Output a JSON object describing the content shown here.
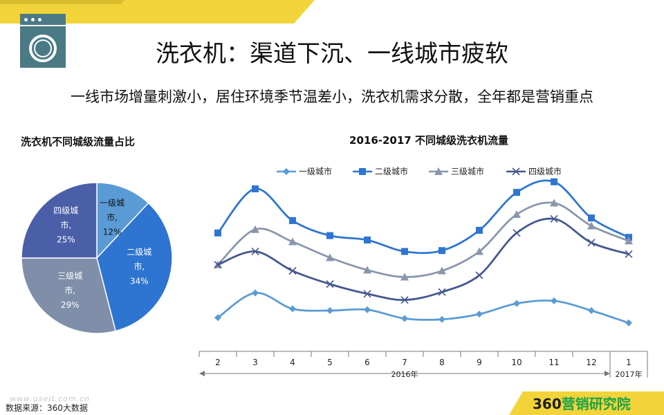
{
  "page": {
    "title": "洗衣机：渠道下沉、一线城市疲软",
    "subtitle": "一线市场增量刺激小，居住环境季节温差小，洗衣机需求分散，全年都是营销重点",
    "source": "数据来源：360大数据",
    "watermark": "www.useit.com.cn",
    "brand_number": "360",
    "brand_text": "营销研究院",
    "icon": "washing-machine-icon",
    "colors": {
      "accent_yellow": "#f2d43a",
      "icon_teal": "#4a7a86",
      "brand_green": "#1aa34a"
    }
  },
  "chart_data": [
    {
      "type": "pie",
      "title": "洗衣机不同城级流量占比",
      "slices": [
        {
          "label_line1": "一级城",
          "label_line2": "市,",
          "label_line3": "12%",
          "value": 12,
          "color": "#5b9bd5"
        },
        {
          "label_line1": "二级城",
          "label_line2": "市,",
          "label_line3": "34%",
          "value": 34,
          "color": "#2e75d1"
        },
        {
          "label_line1": "三级城",
          "label_line2": "市,",
          "label_line3": "29%",
          "value": 29,
          "color": "#7f8fa9"
        },
        {
          "label_line1": "四级城",
          "label_line2": "市,",
          "label_line3": "25%",
          "value": 25,
          "color": "#4a5fa8"
        }
      ]
    },
    {
      "type": "line",
      "title": "2016-2017 不同城级洗衣机流量",
      "categories": [
        "2",
        "3",
        "4",
        "5",
        "6",
        "7",
        "8",
        "9",
        "10",
        "11",
        "12",
        "1"
      ],
      "year_labels": [
        "2016年",
        "2017年"
      ],
      "ylim": [
        0,
        100
      ],
      "grid": false,
      "legend": "top",
      "series": [
        {
          "name": "一级城市",
          "color": "#5b9bd5",
          "marker": "diamond",
          "values": [
            16,
            30,
            21,
            20,
            20.5,
            15.5,
            15,
            18,
            24,
            25.5,
            20,
            13
          ]
        },
        {
          "name": "二级城市",
          "color": "#2e75d1",
          "marker": "square",
          "values": [
            64,
            89,
            71,
            62.5,
            60,
            53.5,
            54,
            65.5,
            87,
            93,
            72.5,
            61.5
          ]
        },
        {
          "name": "三级城市",
          "color": "#8a96ab",
          "marker": "triangle",
          "values": [
            46,
            66,
            59,
            50,
            43,
            39,
            42.5,
            53.5,
            74.5,
            81,
            68,
            59.5
          ]
        },
        {
          "name": "四级城市",
          "color": "#44578f",
          "marker": "x",
          "values": [
            46,
            53.5,
            42.5,
            35,
            29.5,
            26,
            30.5,
            40,
            64,
            72,
            58.5,
            52
          ]
        }
      ]
    }
  ]
}
